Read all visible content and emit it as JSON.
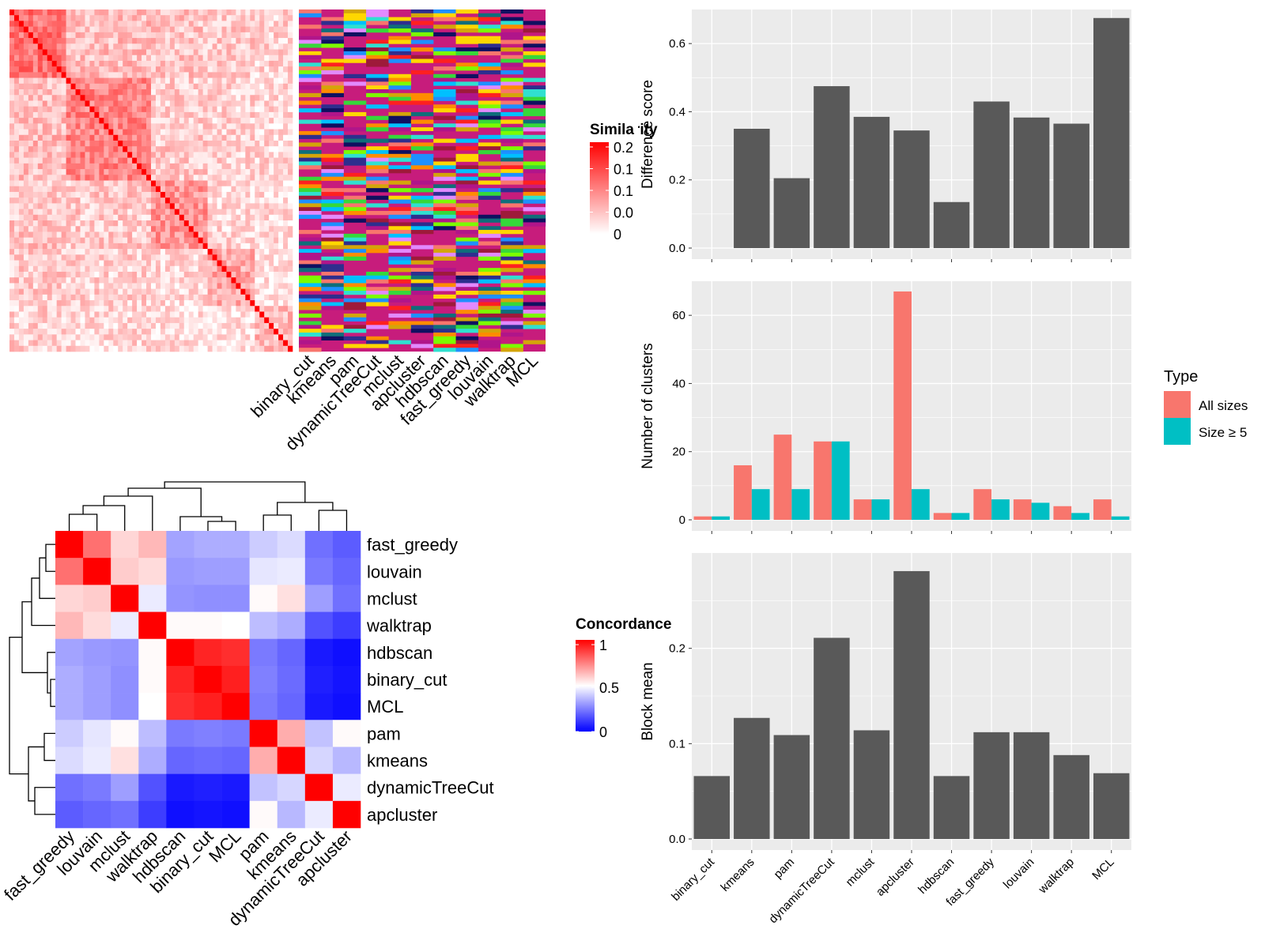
{
  "chart_data": [
    {
      "panel": "similarity-heatmap",
      "type": "heatmap",
      "legend_title": "Similarity",
      "legend_ticks": [
        "0.2",
        "0.1",
        "0.1",
        "0.0",
        "0"
      ],
      "columns": [
        "binary_cut",
        "kmeans",
        "pam",
        "dynamicTreeCut",
        "mclust",
        "apcluster",
        "hdbscan",
        "fast_greedy",
        "louvain",
        "walktrap",
        "MCL"
      ]
    },
    {
      "panel": "concordance-heatmap",
      "type": "heatmap",
      "legend_title": "Concordance",
      "legend_ticks": [
        "1",
        "0.5",
        "0"
      ],
      "rows": [
        "fast_greedy",
        "louvain",
        "mclust",
        "walktrap",
        "hdbscan",
        "binary_cut",
        "MCL",
        "pam",
        "kmeans",
        "dynamicTreeCut",
        "apcluster"
      ],
      "cols": [
        "fast_greedy",
        "louvain",
        "mclust",
        "walktrap",
        "hdbscan",
        "binary_cut",
        "MCL",
        "pam",
        "kmeans",
        "dynamicTreeCut",
        "apcluster"
      ],
      "values": [
        [
          1.0,
          0.78,
          0.58,
          0.64,
          0.32,
          0.34,
          0.34,
          0.4,
          0.43,
          0.22,
          0.18
        ],
        [
          0.78,
          1.0,
          0.6,
          0.57,
          0.3,
          0.31,
          0.31,
          0.45,
          0.46,
          0.24,
          0.2
        ],
        [
          0.58,
          0.6,
          1.0,
          0.46,
          0.29,
          0.28,
          0.28,
          0.51,
          0.56,
          0.31,
          0.22
        ],
        [
          0.64,
          0.57,
          0.46,
          1.0,
          0.51,
          0.51,
          0.5,
          0.37,
          0.34,
          0.16,
          0.12
        ],
        [
          0.32,
          0.3,
          0.29,
          0.51,
          1.0,
          0.93,
          0.91,
          0.24,
          0.2,
          0.05,
          0.03
        ],
        [
          0.34,
          0.31,
          0.28,
          0.51,
          0.93,
          1.0,
          0.94,
          0.25,
          0.21,
          0.06,
          0.04
        ],
        [
          0.34,
          0.31,
          0.28,
          0.5,
          0.91,
          0.94,
          1.0,
          0.24,
          0.2,
          0.05,
          0.03
        ],
        [
          0.4,
          0.45,
          0.51,
          0.37,
          0.24,
          0.25,
          0.24,
          1.0,
          0.66,
          0.38,
          0.51
        ],
        [
          0.43,
          0.46,
          0.56,
          0.34,
          0.2,
          0.21,
          0.2,
          0.66,
          1.0,
          0.42,
          0.36
        ],
        [
          0.22,
          0.24,
          0.31,
          0.16,
          0.05,
          0.06,
          0.05,
          0.38,
          0.42,
          1.0,
          0.46
        ],
        [
          0.18,
          0.2,
          0.22,
          0.12,
          0.03,
          0.04,
          0.03,
          0.51,
          0.36,
          0.46,
          1.0
        ]
      ]
    },
    {
      "panel": "difference-score",
      "type": "bar",
      "ylabel": "Difference score",
      "ylim": [
        0,
        0.7
      ],
      "yticks": [
        "0.0",
        "0.2",
        "0.4",
        "0.6"
      ],
      "categories": [
        "binary_cut",
        "kmeans",
        "pam",
        "dynamicTreeCut",
        "mclust",
        "apcluster",
        "hdbscan",
        "fast_greedy",
        "louvain",
        "walktrap",
        "MCL"
      ],
      "values": [
        0,
        0.35,
        0.205,
        0.475,
        0.385,
        0.345,
        0.135,
        0.43,
        0.383,
        0.365,
        0.675
      ]
    },
    {
      "panel": "number-of-clusters",
      "type": "bar",
      "ylabel": "Number of clusters",
      "ylim": [
        0,
        70
      ],
      "yticks": [
        "0",
        "20",
        "40",
        "60"
      ],
      "categories": [
        "binary_cut",
        "kmeans",
        "pam",
        "dynamicTreeCut",
        "mclust",
        "apcluster",
        "hdbscan",
        "fast_greedy",
        "louvain",
        "walktrap",
        "MCL"
      ],
      "legend_title": "Type",
      "series": [
        {
          "name": "All sizes",
          "color": "#F8766D",
          "values": [
            1,
            16,
            25,
            23,
            6,
            67,
            2,
            9,
            6,
            4,
            6
          ]
        },
        {
          "name": "Size ≥ 5",
          "color": "#00BFC4",
          "values": [
            1,
            9,
            9,
            23,
            6,
            9,
            2,
            6,
            5,
            2,
            1
          ]
        }
      ]
    },
    {
      "panel": "block-mean",
      "type": "bar",
      "ylabel": "Block mean",
      "ylim": [
        0,
        0.3
      ],
      "yticks": [
        "0.0",
        "0.1",
        "0.2"
      ],
      "categories": [
        "binary_cut",
        "kmeans",
        "pam",
        "dynamicTreeCut",
        "mclust",
        "apcluster",
        "hdbscan",
        "fast_greedy",
        "louvain",
        "walktrap",
        "MCL"
      ],
      "values": [
        0.066,
        0.127,
        0.109,
        0.211,
        0.114,
        0.281,
        0.066,
        0.112,
        0.112,
        0.088,
        0.069
      ]
    }
  ]
}
